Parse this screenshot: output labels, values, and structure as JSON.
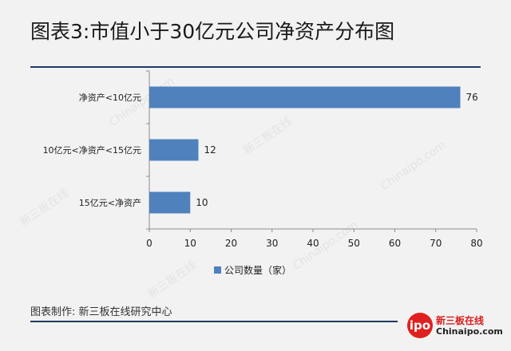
{
  "title": "图表3:市值小于30亿元公司净资产分布图",
  "legend_label": "公司数量（家）",
  "footer": "图表制作: 新三板在线研究中心",
  "logo": {
    "mark": "ipo",
    "name": "新三板在线",
    "domain": "Chinaipo.com"
  },
  "watermarks": [
    "Chinaipo.com",
    "新三板在线"
  ],
  "colors": {
    "bar": "#4f81bd",
    "rule": "#1f3a5f",
    "logo": "#e02020"
  },
  "chart_data": {
    "type": "bar",
    "orientation": "horizontal",
    "categories": [
      "净资产<10亿元",
      "10亿元<净资产<15亿元",
      "15亿元<净资产"
    ],
    "series": [
      {
        "name": "公司数量（家）",
        "values": [
          76,
          12,
          10
        ]
      }
    ],
    "xlim": [
      0,
      80
    ],
    "xticks": [
      0,
      10,
      20,
      30,
      40,
      50,
      60,
      70,
      80
    ],
    "grid": false,
    "legend": "bottom-center"
  }
}
